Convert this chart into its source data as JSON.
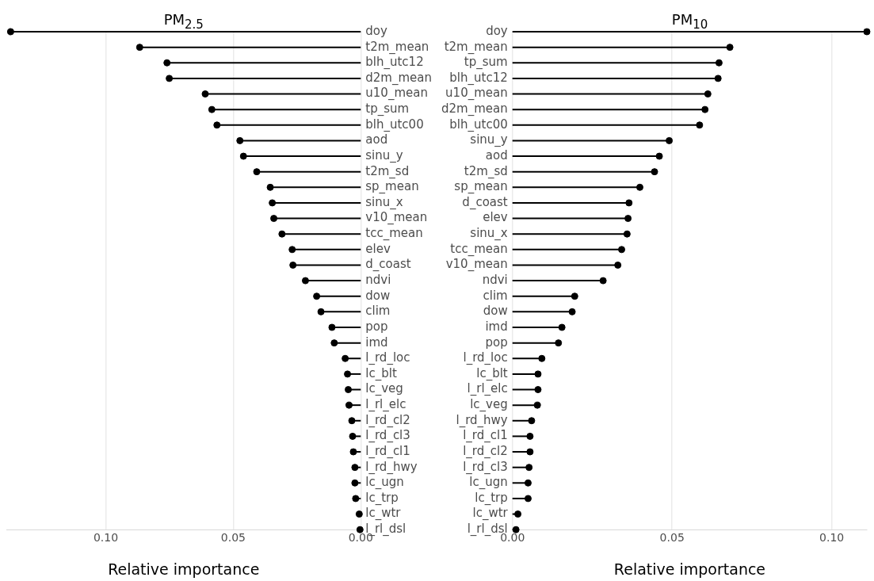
{
  "chart_data": [
    {
      "type": "lollipop",
      "orientation": "horizontal",
      "title": "PM$_{2.5}$",
      "xlabel": "Relative importance",
      "color": "#000000",
      "marker": "circle",
      "grid": "x",
      "xlim": [
        0.139,
        0
      ],
      "xticks": [
        {
          "value": 0.1,
          "label": "0.10"
        },
        {
          "value": 0.05,
          "label": "0.05"
        },
        {
          "value": 0,
          "label": "0.00"
        }
      ],
      "categories": [
        "doy",
        "t2m_mean",
        "blh_utc12",
        "d2m_mean",
        "u10_mean",
        "tp_sum",
        "blh_utc00",
        "aod",
        "sinu_y",
        "t2m_sd",
        "sp_mean",
        "sinu_x",
        "v10_mean",
        "tcc_mean",
        "elev",
        "d_coast",
        "ndvi",
        "dow",
        "clim",
        "pop",
        "imd",
        "l_rd_loc",
        "lc_blt",
        "lc_veg",
        "l_rl_elc",
        "l_rd_cl2",
        "l_rd_cl3",
        "l_rd_cl1",
        "l_rd_hwy",
        "lc_ugn",
        "lc_trp",
        "lc_wtr",
        "l_rl_dsl"
      ],
      "values": [
        0.1373,
        0.0867,
        0.076,
        0.0751,
        0.061,
        0.0584,
        0.0564,
        0.0474,
        0.046,
        0.0408,
        0.0355,
        0.0347,
        0.0341,
        0.0309,
        0.0269,
        0.0266,
        0.0217,
        0.0173,
        0.0156,
        0.0113,
        0.0104,
        0.0061,
        0.0052,
        0.0049,
        0.0046,
        0.0035,
        0.0032,
        0.0029,
        0.0023,
        0.0023,
        0.002,
        0.0006,
        0.0003
      ]
    },
    {
      "type": "lollipop",
      "orientation": "horizontal",
      "title": "PM$_{10}$",
      "xlabel": "Relative importance",
      "color": "#000000",
      "marker": "circle",
      "grid": "x",
      "xlim": [
        0,
        0.111
      ],
      "xticks": [
        {
          "value": 0,
          "label": "0.00"
        },
        {
          "value": 0.05,
          "label": "0.05"
        },
        {
          "value": 0.1,
          "label": "0.10"
        }
      ],
      "categories": [
        "doy",
        "t2m_mean",
        "tp_sum",
        "blh_utc12",
        "u10_mean",
        "d2m_mean",
        "blh_utc00",
        "sinu_y",
        "aod",
        "t2m_sd",
        "sp_mean",
        "d_coast",
        "elev",
        "sinu_x",
        "tcc_mean",
        "v10_mean",
        "ndvi",
        "clim",
        "dow",
        "imd",
        "pop",
        "l_rd_loc",
        "lc_blt",
        "l_rl_elc",
        "lc_veg",
        "l_rd_hwy",
        "l_rd_cl1",
        "l_rd_cl2",
        "l_rd_cl3",
        "lc_ugn",
        "lc_trp",
        "lc_wtr",
        "l_rl_dsl"
      ],
      "values": [
        0.111,
        0.0681,
        0.0647,
        0.0644,
        0.0612,
        0.0603,
        0.0586,
        0.0491,
        0.046,
        0.0445,
        0.0399,
        0.0365,
        0.0362,
        0.0359,
        0.0342,
        0.033,
        0.0284,
        0.0195,
        0.0187,
        0.0155,
        0.0144,
        0.0092,
        0.008,
        0.008,
        0.0078,
        0.006,
        0.0055,
        0.0055,
        0.0052,
        0.0049,
        0.0049,
        0.0017,
        0.0011
      ]
    }
  ]
}
